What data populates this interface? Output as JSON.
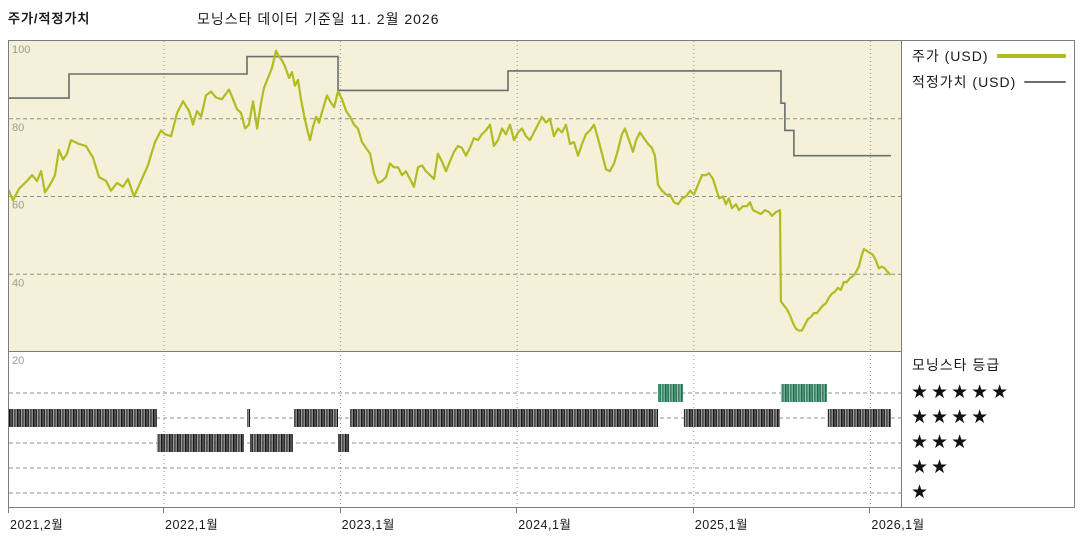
{
  "header": {
    "title": "주가/적정가치",
    "as_of": "모닝스타 데이터 기준일 11. 2월 2026"
  },
  "legend": {
    "price_label": "주가 (USD)",
    "fair_value_label": "적정가치 (USD)"
  },
  "rating_legend": {
    "title": "모닝스타 등급",
    "star_char": "★",
    "levels": [
      5,
      4,
      3,
      2,
      1
    ]
  },
  "colors": {
    "plot_bg": "#f4f1d8",
    "price_line": "#afbc22",
    "fair_value_line": "#6b6d70",
    "grid": "#8f8f8f",
    "border": "#7d7d7d",
    "y_label": "#9c9c90",
    "x_label": "#1a1a1a",
    "band_dark": [
      "#141414",
      "#6e6e6e",
      "#2b2b2b",
      "#a0a0a0",
      "#3d3d3d",
      "#8a8a8a"
    ],
    "band_green": [
      "#1d6f4f",
      "#58a180",
      "#2a7d5d",
      "#8fc2ab",
      "#347a58",
      "#6fae91"
    ]
  },
  "chart_data": {
    "type": "line",
    "title": "주가/적정가치",
    "x_axis": {
      "range": [
        2021.117,
        2026.117
      ],
      "ticks": [
        {
          "label": "2021,2월",
          "t": 2021.122
        },
        {
          "label": "2022,1월",
          "t": 2022.0
        },
        {
          "label": "2023,1월",
          "t": 2023.0
        },
        {
          "label": "2024,1월",
          "t": 2024.0
        },
        {
          "label": "2025,1월",
          "t": 2025.0
        },
        {
          "label": "2026,1월",
          "t": 2026.0
        }
      ]
    },
    "y_axis": {
      "range": [
        20,
        100
      ],
      "ticks": [
        100,
        80,
        60,
        40,
        20
      ],
      "unit": "USD"
    },
    "series": [
      {
        "name": "주가 (USD)",
        "type": "line",
        "points": [
          [
            2021.122,
            61.5
          ],
          [
            2021.145,
            59
          ],
          [
            2021.179,
            62
          ],
          [
            2021.224,
            64
          ],
          [
            2021.253,
            65.5
          ],
          [
            2021.281,
            64
          ],
          [
            2021.304,
            66.5
          ],
          [
            2021.326,
            61
          ],
          [
            2021.36,
            63.5
          ],
          [
            2021.383,
            65.5
          ],
          [
            2021.405,
            72
          ],
          [
            2021.428,
            69.5
          ],
          [
            2021.451,
            71
          ],
          [
            2021.473,
            74.5
          ],
          [
            2021.519,
            73.5
          ],
          [
            2021.558,
            73
          ],
          [
            2021.598,
            70
          ],
          [
            2021.632,
            65
          ],
          [
            2021.672,
            64
          ],
          [
            2021.7,
            61.5
          ],
          [
            2021.734,
            63.5
          ],
          [
            2021.768,
            62.5
          ],
          [
            2021.796,
            64.5
          ],
          [
            2021.83,
            60
          ],
          [
            2021.87,
            64
          ],
          [
            2021.909,
            68
          ],
          [
            2021.949,
            74
          ],
          [
            2021.983,
            77
          ],
          [
            2022.006,
            76
          ],
          [
            2022.04,
            75.5
          ],
          [
            2022.074,
            81.5
          ],
          [
            2022.108,
            84.5
          ],
          [
            2022.142,
            82
          ],
          [
            2022.164,
            78.5
          ],
          [
            2022.187,
            82
          ],
          [
            2022.21,
            80.5
          ],
          [
            2022.238,
            86
          ],
          [
            2022.266,
            87
          ],
          [
            2022.294,
            85.5
          ],
          [
            2022.328,
            85
          ],
          [
            2022.368,
            87.5
          ],
          [
            2022.391,
            85
          ],
          [
            2022.413,
            82.5
          ],
          [
            2022.436,
            81.5
          ],
          [
            2022.459,
            77.5
          ],
          [
            2022.481,
            78.5
          ],
          [
            2022.504,
            84.5
          ],
          [
            2022.527,
            77.5
          ],
          [
            2022.549,
            84
          ],
          [
            2022.566,
            88
          ],
          [
            2022.589,
            90.5
          ],
          [
            2022.611,
            93
          ],
          [
            2022.634,
            97.5
          ],
          [
            2022.651,
            96
          ],
          [
            2022.668,
            95
          ],
          [
            2022.685,
            93.5
          ],
          [
            2022.708,
            90.5
          ],
          [
            2022.725,
            92
          ],
          [
            2022.742,
            88.5
          ],
          [
            2022.759,
            90
          ],
          [
            2022.776,
            85
          ],
          [
            2022.793,
            81
          ],
          [
            2022.81,
            77.5
          ],
          [
            2022.827,
            74.5
          ],
          [
            2022.844,
            78
          ],
          [
            2022.861,
            80.5
          ],
          [
            2022.878,
            79
          ],
          [
            2022.9,
            82.5
          ],
          [
            2022.923,
            86
          ],
          [
            2022.94,
            84.5
          ],
          [
            2022.963,
            83
          ],
          [
            2022.985,
            87
          ],
          [
            2023.008,
            85
          ],
          [
            2023.031,
            82
          ],
          [
            2023.053,
            80.5
          ],
          [
            2023.076,
            78.5
          ],
          [
            2023.098,
            77.5
          ],
          [
            2023.121,
            74
          ],
          [
            2023.144,
            72.5
          ],
          [
            2023.167,
            71
          ],
          [
            2023.189,
            66
          ],
          [
            2023.212,
            63.5
          ],
          [
            2023.235,
            64
          ],
          [
            2023.257,
            65
          ],
          [
            2023.28,
            68.5
          ],
          [
            2023.302,
            67.5
          ],
          [
            2023.325,
            67.5
          ],
          [
            2023.348,
            65.5
          ],
          [
            2023.37,
            66.5
          ],
          [
            2023.393,
            64.5
          ],
          [
            2023.415,
            62.5
          ],
          [
            2023.438,
            67.5
          ],
          [
            2023.461,
            68
          ],
          [
            2023.483,
            66.5
          ],
          [
            2023.506,
            65.5
          ],
          [
            2023.529,
            64.5
          ],
          [
            2023.551,
            71
          ],
          [
            2023.574,
            69
          ],
          [
            2023.597,
            66.5
          ],
          [
            2023.619,
            69
          ],
          [
            2023.642,
            71.5
          ],
          [
            2023.665,
            73
          ],
          [
            2023.687,
            72.5
          ],
          [
            2023.71,
            70.5
          ],
          [
            2023.732,
            72.5
          ],
          [
            2023.755,
            75
          ],
          [
            2023.778,
            74.5
          ],
          [
            2023.8,
            76
          ],
          [
            2023.823,
            77
          ],
          [
            2023.846,
            78.5
          ],
          [
            2023.868,
            73
          ],
          [
            2023.891,
            74.5
          ],
          [
            2023.914,
            77.5
          ],
          [
            2023.936,
            76
          ],
          [
            2023.959,
            78.5
          ],
          [
            2023.982,
            74.5
          ],
          [
            2024.005,
            76.5
          ],
          [
            2024.027,
            77.5
          ],
          [
            2024.05,
            75.5
          ],
          [
            2024.072,
            74.5
          ],
          [
            2024.095,
            76.5
          ],
          [
            2024.118,
            78.5
          ],
          [
            2024.14,
            80.5
          ],
          [
            2024.163,
            79
          ],
          [
            2024.186,
            80
          ],
          [
            2024.208,
            75.5
          ],
          [
            2024.231,
            77.5
          ],
          [
            2024.254,
            76.5
          ],
          [
            2024.276,
            78.5
          ],
          [
            2024.299,
            73.5
          ],
          [
            2024.321,
            74
          ],
          [
            2024.344,
            70.5
          ],
          [
            2024.367,
            73.5
          ],
          [
            2024.389,
            76
          ],
          [
            2024.412,
            77
          ],
          [
            2024.435,
            78.5
          ],
          [
            2024.457,
            75
          ],
          [
            2024.48,
            71
          ],
          [
            2024.503,
            67
          ],
          [
            2024.525,
            66.5
          ],
          [
            2024.548,
            68.5
          ],
          [
            2024.571,
            72
          ],
          [
            2024.593,
            76
          ],
          [
            2024.61,
            77.5
          ],
          [
            2024.633,
            74.5
          ],
          [
            2024.656,
            71.5
          ],
          [
            2024.673,
            74.5
          ],
          [
            2024.695,
            76.5
          ],
          [
            2024.718,
            75
          ],
          [
            2024.741,
            73.5
          ],
          [
            2024.763,
            72.5
          ],
          [
            2024.78,
            70.5
          ],
          [
            2024.797,
            63
          ],
          [
            2024.82,
            61.5
          ],
          [
            2024.843,
            60.5
          ],
          [
            2024.865,
            60.5
          ],
          [
            2024.888,
            58.5
          ],
          [
            2024.911,
            58
          ],
          [
            2024.933,
            59.5
          ],
          [
            2024.956,
            60
          ],
          [
            2024.979,
            61.5
          ],
          [
            2025.001,
            60.5
          ],
          [
            2025.024,
            63
          ],
          [
            2025.047,
            65.5
          ],
          [
            2025.069,
            65.5
          ],
          [
            2025.086,
            66
          ],
          [
            2025.109,
            64.5
          ],
          [
            2025.126,
            62
          ],
          [
            2025.143,
            59.5
          ],
          [
            2025.165,
            60
          ],
          [
            2025.182,
            58
          ],
          [
            2025.199,
            59.5
          ],
          [
            2025.216,
            57
          ],
          [
            2025.239,
            58
          ],
          [
            2025.256,
            56.5
          ],
          [
            2025.278,
            57.5
          ],
          [
            2025.301,
            57.5
          ],
          [
            2025.318,
            58.5
          ],
          [
            2025.335,
            56.5
          ],
          [
            2025.358,
            56
          ],
          [
            2025.38,
            55.5
          ],
          [
            2025.403,
            56.5
          ],
          [
            2025.426,
            56
          ],
          [
            2025.443,
            55
          ],
          [
            2025.465,
            56
          ],
          [
            2025.488,
            56.5
          ],
          [
            2025.493,
            33
          ],
          [
            2025.51,
            32
          ],
          [
            2025.527,
            31
          ],
          [
            2025.544,
            29.5
          ],
          [
            2025.561,
            27.5
          ],
          [
            2025.578,
            26
          ],
          [
            2025.595,
            25.5
          ],
          [
            2025.612,
            25.5
          ],
          [
            2025.629,
            27
          ],
          [
            2025.646,
            28.5
          ],
          [
            2025.663,
            29
          ],
          [
            2025.68,
            30
          ],
          [
            2025.697,
            30
          ],
          [
            2025.714,
            31
          ],
          [
            2025.731,
            32
          ],
          [
            2025.748,
            32.5
          ],
          [
            2025.765,
            34
          ],
          [
            2025.782,
            35
          ],
          [
            2025.799,
            35.5
          ],
          [
            2025.816,
            36.5
          ],
          [
            2025.833,
            36
          ],
          [
            2025.85,
            38
          ],
          [
            2025.867,
            38
          ],
          [
            2025.884,
            39
          ],
          [
            2025.901,
            39.5
          ],
          [
            2025.918,
            40.5
          ],
          [
            2025.935,
            42
          ],
          [
            2025.952,
            45
          ],
          [
            2025.963,
            46.5
          ],
          [
            2025.98,
            46
          ],
          [
            2025.997,
            45.5
          ],
          [
            2026.014,
            45
          ],
          [
            2026.031,
            43.5
          ],
          [
            2026.048,
            41.5
          ],
          [
            2026.065,
            42
          ],
          [
            2026.082,
            41.5
          ],
          [
            2026.099,
            40.5
          ],
          [
            2026.11,
            40
          ]
        ]
      },
      {
        "name": "적정가치 (USD)",
        "type": "step",
        "segments": [
          {
            "from": 2021.122,
            "to": 2021.462,
            "value": 85.3
          },
          {
            "from": 2021.462,
            "to": 2022.47,
            "value": 91.5
          },
          {
            "from": 2022.47,
            "to": 2022.985,
            "value": 96
          },
          {
            "from": 2022.985,
            "to": 2023.948,
            "value": 87.3
          },
          {
            "from": 2023.948,
            "to": 2025.494,
            "value": 92.3
          },
          {
            "from": 2025.494,
            "to": 2025.516,
            "value": 84
          },
          {
            "from": 2025.516,
            "to": 2025.567,
            "value": 77
          },
          {
            "from": 2025.567,
            "to": 2026.116,
            "value": 70.5
          }
        ]
      }
    ],
    "rating_history": {
      "title": "모닝스타 등급",
      "segments": [
        {
          "from": 2021.122,
          "to": 2021.96,
          "stars": 4
        },
        {
          "from": 2021.96,
          "to": 2022.453,
          "stars": 3
        },
        {
          "from": 2022.47,
          "to": 2022.487,
          "stars": 4
        },
        {
          "from": 2022.487,
          "to": 2022.73,
          "stars": 3
        },
        {
          "from": 2022.736,
          "to": 2022.985,
          "stars": 4
        },
        {
          "from": 2022.985,
          "to": 2023.048,
          "stars": 3
        },
        {
          "from": 2023.053,
          "to": 2024.797,
          "stars": 4
        },
        {
          "from": 2024.797,
          "to": 2024.939,
          "stars": 5
        },
        {
          "from": 2024.944,
          "to": 2025.487,
          "stars": 4
        },
        {
          "from": 2025.493,
          "to": 2025.754,
          "stars": 5
        },
        {
          "from": 2025.759,
          "to": 2026.116,
          "stars": 4
        }
      ]
    }
  }
}
